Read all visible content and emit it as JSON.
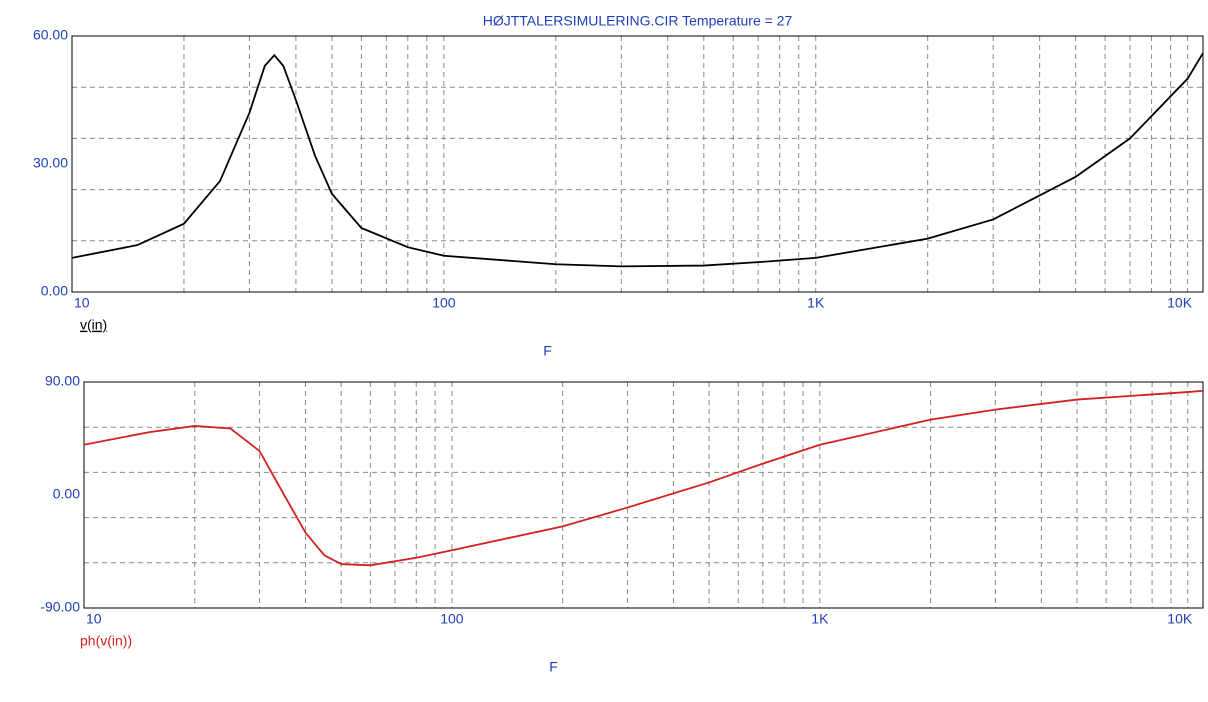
{
  "chart_data": [
    {
      "type": "line",
      "title": "HØJTTALERSIMULERING.CIR Temperature = 27",
      "x_label": "F",
      "log_x": true,
      "grid": true,
      "x": [
        10,
        15,
        20,
        25,
        30,
        33,
        35,
        37,
        40,
        45,
        50,
        60,
        80,
        100,
        200,
        300,
        500,
        700,
        1000,
        2000,
        3000,
        5000,
        7000,
        10000,
        11000
      ],
      "series": [
        {
          "name": "v(in)",
          "color": "#000000",
          "values": [
            8,
            11,
            16,
            26,
            42,
            53,
            55.5,
            53,
            45,
            32,
            23,
            15,
            10.5,
            8.5,
            6.5,
            6,
            6.2,
            7,
            8,
            12.5,
            17,
            27,
            36,
            50,
            56
          ]
        }
      ],
      "xlim": [
        10,
        11000
      ],
      "xticks": [
        10,
        100,
        {
          "value": 1000,
          "label": "1K"
        },
        {
          "value": 10000,
          "label": "10K"
        }
      ],
      "ylim": [
        0,
        60
      ],
      "yticks": [
        {
          "value": 0,
          "label": "0.00"
        },
        {
          "value": 30,
          "label": "30.00"
        },
        {
          "value": 60,
          "label": "60.00"
        }
      ],
      "ygrid": [
        12,
        24,
        36,
        48
      ]
    },
    {
      "type": "line",
      "x_label": "F",
      "log_x": true,
      "grid": true,
      "x": [
        10,
        15,
        20,
        25,
        30,
        35,
        40,
        45,
        50,
        60,
        80,
        100,
        200,
        300,
        500,
        700,
        1000,
        2000,
        3000,
        5000,
        10000,
        11000
      ],
      "series": [
        {
          "name": "ph(v(in))",
          "color": "#d42020",
          "values": [
            40,
            50,
            55,
            53,
            35,
            0,
            -30,
            -48,
            -55,
            -56,
            -50,
            -44,
            -25,
            -10,
            10,
            25,
            40,
            60,
            68,
            76,
            82,
            83
          ]
        }
      ],
      "xlim": [
        10,
        11000
      ],
      "xticks": [
        10,
        100,
        {
          "value": 1000,
          "label": "1K"
        },
        {
          "value": 10000,
          "label": "10K"
        }
      ],
      "ylim": [
        -90,
        90
      ],
      "yticks": [
        {
          "value": -90,
          "label": "-90.00"
        },
        {
          "value": 0,
          "label": "0.00"
        },
        {
          "value": 90,
          "label": "90.00"
        }
      ],
      "ygrid": [
        -54,
        -18,
        18,
        54
      ]
    }
  ]
}
